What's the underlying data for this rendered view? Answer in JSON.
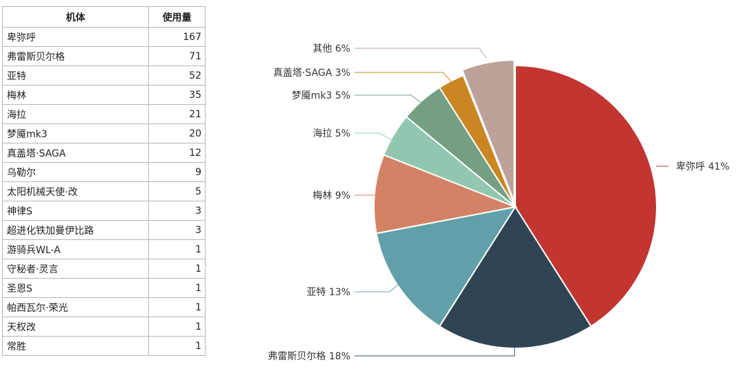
{
  "table": {
    "headers": [
      "机体",
      "使用量"
    ],
    "rows": [
      [
        "卑弥呼",
        "167"
      ],
      [
        "弗雷斯贝尔格",
        "71"
      ],
      [
        "亚特",
        "52"
      ],
      [
        "梅林",
        "35"
      ],
      [
        "海拉",
        "21"
      ],
      [
        "梦魇mk3",
        "20"
      ],
      [
        "真盖塔·SAGA",
        "12"
      ],
      [
        "乌勒尔",
        "9"
      ],
      [
        "太阳机械天使·改",
        "5"
      ],
      [
        "神律S",
        "3"
      ],
      [
        "超进化铁加曼伊比路",
        "3"
      ],
      [
        "游骑兵WL-A",
        "1"
      ],
      [
        "守秘者·灵言",
        "1"
      ],
      [
        "圣恩S",
        "1"
      ],
      [
        "帕西瓦尔·荣光",
        "1"
      ],
      [
        "天权改",
        "1"
      ],
      [
        "常胜",
        "1"
      ]
    ]
  },
  "chart_data": {
    "type": "pie",
    "slices": [
      {
        "name": "卑弥呼",
        "label": "卑弥呼 41%",
        "value": 41,
        "color": "#c23531"
      },
      {
        "name": "弗雷斯贝尔格",
        "label": "弗雷斯贝尔格 18%",
        "value": 18,
        "color": "#2f4554"
      },
      {
        "name": "亚特",
        "label": "亚特 13%",
        "value": 13,
        "color": "#61a0a8"
      },
      {
        "name": "梅林",
        "label": "梅林 9%",
        "value": 9,
        "color": "#d48265"
      },
      {
        "name": "海拉",
        "label": "海拉 5%",
        "value": 5,
        "color": "#91c7ae"
      },
      {
        "name": "梦魇mk3",
        "label": "梦魇mk3 5%",
        "value": 5,
        "color": "#749f83"
      },
      {
        "name": "真盖塔·SAGA",
        "label": "真盖塔·SAGA 3%",
        "value": 3,
        "color": "#ca8622"
      },
      {
        "name": "其他",
        "label": "其他 6%",
        "value": 6,
        "color": "#bda29a",
        "offset": true
      }
    ],
    "start_angle_deg": 90,
    "direction": "clockwise"
  }
}
